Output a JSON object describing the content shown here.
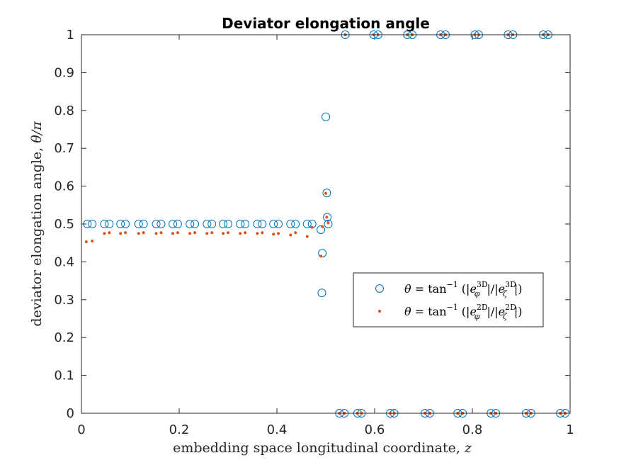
{
  "chart_data": {
    "type": "scatter",
    "title": "Deviator elongation angle",
    "xlabel_text": "embedding space longitudinal coordinate, ",
    "xlabel_math": "z",
    "ylabel_text": "deviator elongation angle, ",
    "ylabel_math": "θ/π",
    "xlim": [
      0,
      1
    ],
    "ylim": [
      0,
      1
    ],
    "xticks": [
      0,
      0.2,
      0.4,
      0.6,
      0.8,
      1
    ],
    "xtick_labels": [
      "0",
      "0.2",
      "0.4",
      "0.6",
      "0.8",
      "1"
    ],
    "yticks": [
      0,
      0.1,
      0.2,
      0.3,
      0.4,
      0.5,
      0.6,
      0.7,
      0.8,
      0.9,
      1
    ],
    "ytick_labels": [
      "0",
      "0.1",
      "0.2",
      "0.3",
      "0.4",
      "0.5",
      "0.6",
      "0.7",
      "0.8",
      "0.9",
      "1"
    ],
    "grid": false,
    "legend_position": "lower-right-center",
    "series": [
      {
        "legend": "θ = tan⁻¹(|e_φ^3D| / |e_ζ^3D|)",
        "marker": "open-circle",
        "color": "#0072BD",
        "x": [
          0.012,
          0.022,
          0.047,
          0.057,
          0.08,
          0.09,
          0.117,
          0.127,
          0.153,
          0.163,
          0.187,
          0.197,
          0.222,
          0.232,
          0.257,
          0.267,
          0.29,
          0.3,
          0.325,
          0.335,
          0.36,
          0.37,
          0.393,
          0.403,
          0.428,
          0.438,
          0.462,
          0.472,
          0.49,
          0.492,
          0.493,
          0.5,
          0.502,
          0.503,
          0.505,
          0.528,
          0.538,
          0.54,
          0.565,
          0.573,
          0.598,
          0.607,
          0.632,
          0.64,
          0.667,
          0.677,
          0.703,
          0.713,
          0.735,
          0.745,
          0.77,
          0.78,
          0.805,
          0.813,
          0.838,
          0.848,
          0.873,
          0.883,
          0.91,
          0.92,
          0.945,
          0.955,
          0.98,
          0.99
        ],
        "y": [
          0.5,
          0.5,
          0.5,
          0.5,
          0.5,
          0.5,
          0.5,
          0.5,
          0.5,
          0.5,
          0.5,
          0.5,
          0.5,
          0.5,
          0.5,
          0.5,
          0.5,
          0.5,
          0.5,
          0.5,
          0.5,
          0.5,
          0.5,
          0.5,
          0.5,
          0.5,
          0.5,
          0.5,
          0.485,
          0.318,
          0.423,
          0.783,
          0.582,
          0.518,
          0.5,
          0.0,
          0.0,
          1.0,
          0.0,
          0.0,
          1.0,
          1.0,
          0.0,
          0.0,
          1.0,
          1.0,
          0.0,
          0.0,
          1.0,
          1.0,
          0.0,
          0.0,
          1.0,
          1.0,
          0.0,
          0.0,
          1.0,
          1.0,
          0.0,
          0.0,
          1.0,
          1.0,
          0.0,
          0.0
        ]
      },
      {
        "legend": "θ = tan⁻¹(|e_φ^2D| / |e_ζ^2D|)",
        "marker": "dot",
        "color": "#D95319",
        "x": [
          0.01,
          0.022,
          0.047,
          0.057,
          0.08,
          0.09,
          0.117,
          0.127,
          0.153,
          0.163,
          0.187,
          0.197,
          0.222,
          0.232,
          0.257,
          0.267,
          0.29,
          0.3,
          0.325,
          0.335,
          0.36,
          0.37,
          0.393,
          0.403,
          0.428,
          0.438,
          0.462,
          0.472,
          0.49,
          0.493,
          0.5,
          0.502,
          0.505,
          0.528,
          0.538,
          0.54,
          0.565,
          0.573,
          0.598,
          0.607,
          0.632,
          0.64,
          0.667,
          0.677,
          0.703,
          0.713,
          0.735,
          0.745,
          0.77,
          0.78,
          0.805,
          0.813,
          0.838,
          0.848,
          0.873,
          0.883,
          0.91,
          0.92,
          0.945,
          0.955,
          0.98,
          0.99
        ],
        "y": [
          0.453,
          0.455,
          0.475,
          0.477,
          0.475,
          0.477,
          0.475,
          0.477,
          0.475,
          0.477,
          0.475,
          0.477,
          0.475,
          0.477,
          0.475,
          0.477,
          0.475,
          0.477,
          0.475,
          0.477,
          0.475,
          0.477,
          0.473,
          0.475,
          0.471,
          0.477,
          0.467,
          0.491,
          0.415,
          0.493,
          0.581,
          0.518,
          0.503,
          0.0,
          0.0,
          1.0,
          0.0,
          0.0,
          1.0,
          1.0,
          0.0,
          0.0,
          1.0,
          1.0,
          0.0,
          0.0,
          1.0,
          1.0,
          0.0,
          0.0,
          1.0,
          1.0,
          0.0,
          0.0,
          1.0,
          1.0,
          0.0,
          0.0,
          1.0,
          1.0,
          0.0,
          0.0
        ]
      }
    ]
  }
}
